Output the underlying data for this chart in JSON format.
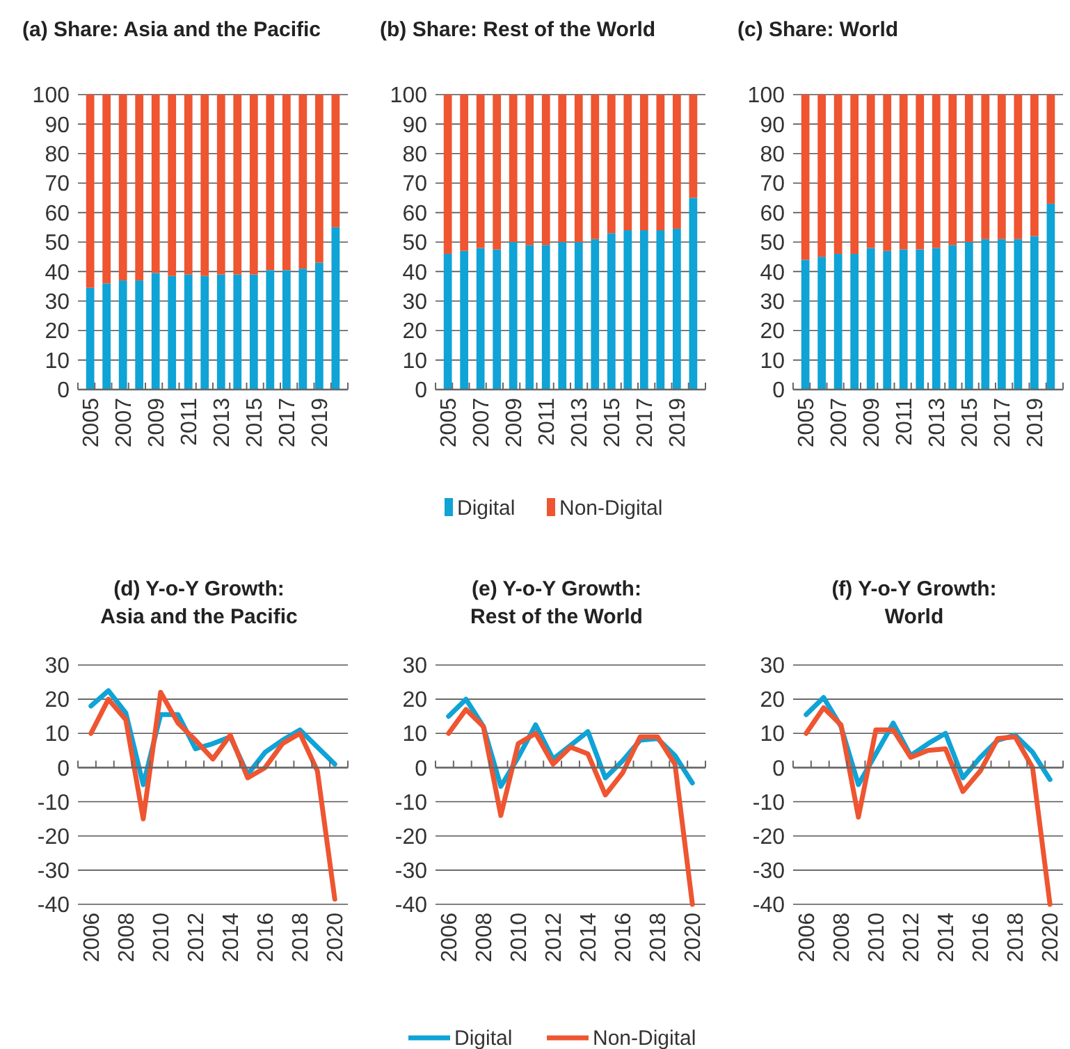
{
  "chart_data": [
    {
      "type": "bar",
      "title": "(a) Share: Asia and the Pacific",
      "stacked": true,
      "grid": "y",
      "legend": false,
      "categories": [
        "2005",
        null,
        "2007",
        null,
        "2009",
        null,
        "2011",
        null,
        "2013",
        null,
        "2015",
        null,
        "2017",
        null,
        "2019",
        null
      ],
      "ylim": [
        0,
        100
      ],
      "yticks": [
        0,
        10,
        20,
        30,
        40,
        50,
        60,
        70,
        80,
        90,
        100
      ],
      "series": [
        {
          "color": "#0fa3d6",
          "values": [
            34.5,
            36,
            37,
            37,
            39.5,
            38.5,
            39,
            38.5,
            39,
            39,
            39,
            40.5,
            40.5,
            41,
            43,
            55
          ]
        },
        {
          "color": "#ee5530",
          "values": [
            65.5,
            64,
            63,
            63,
            60.5,
            61.5,
            61,
            61.5,
            61,
            61,
            61,
            59.5,
            59.5,
            59,
            57,
            45
          ]
        }
      ]
    },
    {
      "type": "bar",
      "title": "(b) Share: Rest of the World",
      "stacked": true,
      "grid": "y",
      "legend": "bottom",
      "categories": [
        "2005",
        null,
        "2007",
        null,
        "2009",
        null,
        "2011",
        null,
        "2013",
        null,
        "2015",
        null,
        "2017",
        null,
        "2019",
        null
      ],
      "ylim": [
        0,
        100
      ],
      "yticks": [
        0,
        10,
        20,
        30,
        40,
        50,
        60,
        70,
        80,
        90,
        100
      ],
      "series": [
        {
          "name": "Digital",
          "color": "#0fa3d6",
          "values": [
            46,
            47,
            48,
            47.5,
            50,
            49,
            49,
            50,
            50,
            51,
            53,
            54,
            54,
            54,
            54.5,
            65
          ]
        },
        {
          "name": "Non-Digital",
          "color": "#ee5530",
          "values": [
            54,
            53,
            52,
            52.5,
            50,
            51,
            51,
            50,
            50,
            49,
            47,
            46,
            46,
            46,
            45.5,
            35
          ]
        }
      ]
    },
    {
      "type": "bar",
      "title": "(c) Share: World",
      "stacked": true,
      "grid": "y",
      "legend": false,
      "categories": [
        "2005",
        null,
        "2007",
        null,
        "2009",
        null,
        "2011",
        null,
        "2013",
        null,
        "2015",
        null,
        "2017",
        null,
        "2019",
        null
      ],
      "ylim": [
        0,
        100
      ],
      "yticks": [
        0,
        10,
        20,
        30,
        40,
        50,
        60,
        70,
        80,
        90,
        100
      ],
      "series": [
        {
          "color": "#0fa3d6",
          "values": [
            44,
            45,
            46,
            46,
            48,
            47,
            47.5,
            47.5,
            48,
            49,
            50,
            51,
            51,
            51,
            52,
            63
          ]
        },
        {
          "color": "#ee5530",
          "values": [
            56,
            55,
            54,
            54,
            52,
            53,
            52.5,
            52.5,
            52,
            51,
            50,
            49,
            49,
            49,
            48,
            37
          ]
        }
      ]
    },
    {
      "type": "line",
      "title": "(d) Y-o-Y Growth:\nAsia and the Pacific",
      "grid": "y",
      "legend": false,
      "categories": [
        "2006",
        null,
        "2008",
        null,
        "2010",
        null,
        "2012",
        null,
        "2014",
        null,
        "2016",
        null,
        "2018",
        null,
        "2020"
      ],
      "ylim": [
        -40,
        30
      ],
      "yticks": [
        -40,
        -30,
        -20,
        -10,
        0,
        10,
        20,
        30
      ],
      "series": [
        {
          "color": "#0fa3d6",
          "values": [
            18,
            22.5,
            16,
            -5,
            15.5,
            15.5,
            5.5,
            7,
            9,
            -2,
            4.5,
            8,
            11,
            6,
            1
          ]
        },
        {
          "color": "#ee5530",
          "values": [
            10,
            20,
            14,
            -15,
            22,
            13,
            8,
            2.5,
            9.5,
            -3,
            0,
            7,
            10,
            -1,
            -38.5
          ]
        }
      ]
    },
    {
      "type": "line",
      "title": "(e) Y-o-Y Growth:\nRest of the World",
      "grid": "y",
      "legend": "bottom",
      "categories": [
        "2006",
        null,
        "2008",
        null,
        "2010",
        null,
        "2012",
        null,
        "2014",
        null,
        "2016",
        null,
        "2018",
        null,
        "2020"
      ],
      "ylim": [
        -40,
        30
      ],
      "yticks": [
        -40,
        -30,
        -20,
        -10,
        0,
        10,
        20,
        30
      ],
      "series": [
        {
          "name": "Digital",
          "color": "#0fa3d6",
          "values": [
            15,
            20,
            12,
            -5.5,
            3,
            12.5,
            2.5,
            6.5,
            10.5,
            -3,
            2,
            8,
            8.5,
            3.5,
            -4.5
          ]
        },
        {
          "name": "Non-Digital",
          "color": "#ee5530",
          "values": [
            10,
            17,
            12,
            -14,
            7,
            10,
            1,
            6,
            4,
            -8,
            -1.5,
            9,
            9,
            1,
            -40
          ]
        }
      ]
    },
    {
      "type": "line",
      "title": "(f) Y-o-Y Growth:\nWorld",
      "grid": "y",
      "legend": false,
      "categories": [
        "2006",
        null,
        "2008",
        null,
        "2010",
        null,
        "2012",
        null,
        "2014",
        null,
        "2016",
        null,
        "2018",
        null,
        "2020"
      ],
      "ylim": [
        -40,
        30
      ],
      "yticks": [
        -40,
        -30,
        -20,
        -10,
        0,
        10,
        20,
        30
      ],
      "series": [
        {
          "color": "#0fa3d6",
          "values": [
            15.5,
            20.5,
            12,
            -5,
            4,
            13,
            3.5,
            7,
            10,
            -3,
            3,
            8,
            9.5,
            4.5,
            -3.5
          ]
        },
        {
          "color": "#ee5530",
          "values": [
            10,
            17.5,
            12.5,
            -14.5,
            11,
            11,
            3,
            5,
            5.5,
            -7,
            -1,
            8.5,
            9,
            0,
            -40
          ]
        }
      ]
    }
  ]
}
